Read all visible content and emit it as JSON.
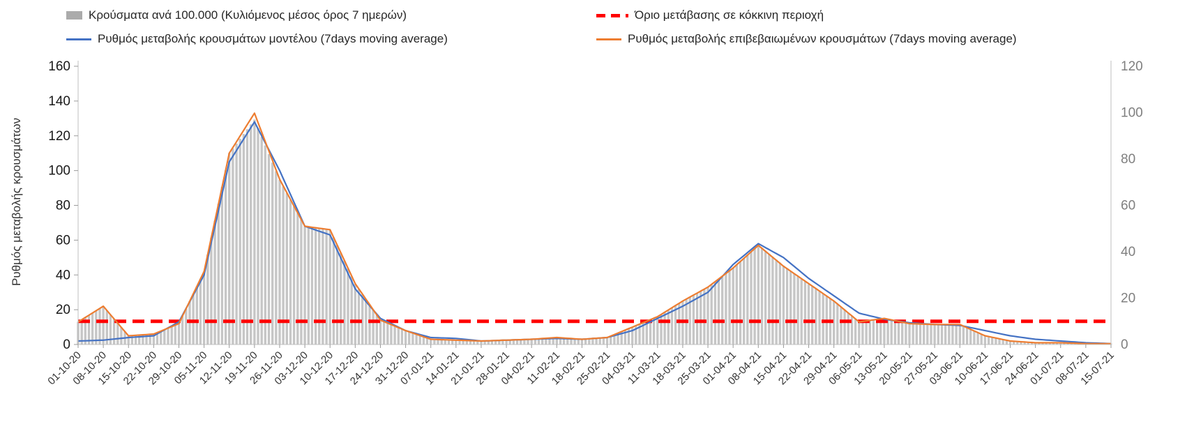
{
  "chart_data": {
    "type": "bar",
    "x_labels": [
      "01-10-20",
      "08-10-20",
      "15-10-20",
      "22-10-20",
      "29-10-20",
      "05-11-20",
      "12-11-20",
      "19-11-20",
      "26-11-20",
      "03-12-20",
      "10-12-20",
      "17-12-20",
      "24-12-20",
      "31-12-20",
      "07-01-21",
      "14-01-21",
      "21-01-21",
      "28-01-21",
      "04-02-21",
      "11-02-21",
      "18-02-21",
      "25-02-21",
      "04-03-21",
      "11-03-21",
      "18-03-21",
      "25-03-21",
      "01-04-21",
      "08-04-21",
      "15-04-21",
      "22-04-21",
      "29-04-21",
      "06-05-21",
      "13-05-21",
      "20-05-21",
      "27-05-21",
      "03-06-21",
      "10-06-21",
      "17-06-21",
      "24-06-21",
      "01-07-21",
      "08-07-21",
      "15-07-21"
    ],
    "left_axis": {
      "label": "Ρυθμός μεταβολής κρουσμάτων",
      "min": 0,
      "max": 160,
      "step": 20
    },
    "right_axis": {
      "min": 0,
      "max": 120,
      "step": 20
    },
    "threshold": {
      "label": "Όριο μετάβασης σε κόκκινη περιοχή",
      "value": 10,
      "axis": "right",
      "color": "#ff0000"
    },
    "series": [
      {
        "name": "Κρούσματα ανά 100.000 (Κυλιόμενος μέσος όρος 7 ημερών)",
        "type": "bar",
        "axis": "right",
        "color": "#c6c6c6",
        "values": [
          9.8,
          16.5,
          3.8,
          4.5,
          9,
          31.5,
          82.5,
          97,
          71,
          51,
          49.5,
          26,
          10.5,
          6,
          2.3,
          1.9,
          1.5,
          1.9,
          2.3,
          3,
          2.3,
          3,
          7.5,
          12,
          18.8,
          24.8,
          33,
          43,
          34,
          26,
          18.8,
          9.8,
          11.3,
          9,
          8.6,
          8.6,
          3.8,
          1.5,
          0.8,
          0.8,
          0.4,
          0.4
        ]
      },
      {
        "name": "Ρυθμός μεταβολής κρουσμάτων μοντέλου (7days moving average)",
        "type": "line",
        "axis": "left",
        "color": "#4472c4",
        "values": [
          2,
          2.5,
          4,
          5,
          13,
          40,
          105,
          128,
          100,
          68,
          63,
          32,
          15,
          8,
          4,
          3.5,
          2,
          2.5,
          3,
          3.5,
          3,
          4,
          8,
          15,
          22,
          30,
          46,
          58,
          50,
          38,
          28,
          18,
          14.5,
          12.5,
          11.5,
          11,
          8,
          5,
          3,
          2,
          1,
          0.5
        ]
      },
      {
        "name": "Ρυθμός μεταβολής επιβεβαιωμένων κρουσμάτων (7days moving average)",
        "type": "line",
        "axis": "left",
        "color": "#ed7d31",
        "values": [
          13,
          22,
          5,
          6,
          12,
          42,
          110,
          133,
          95,
          68,
          66,
          35,
          14,
          8,
          3,
          2.5,
          2,
          2.5,
          3,
          4,
          3,
          4,
          10,
          16,
          25,
          33,
          44,
          57,
          45,
          35,
          25,
          13,
          15,
          12,
          11.5,
          11.5,
          5,
          2,
          1,
          1,
          0.5,
          0.5
        ]
      }
    ]
  }
}
